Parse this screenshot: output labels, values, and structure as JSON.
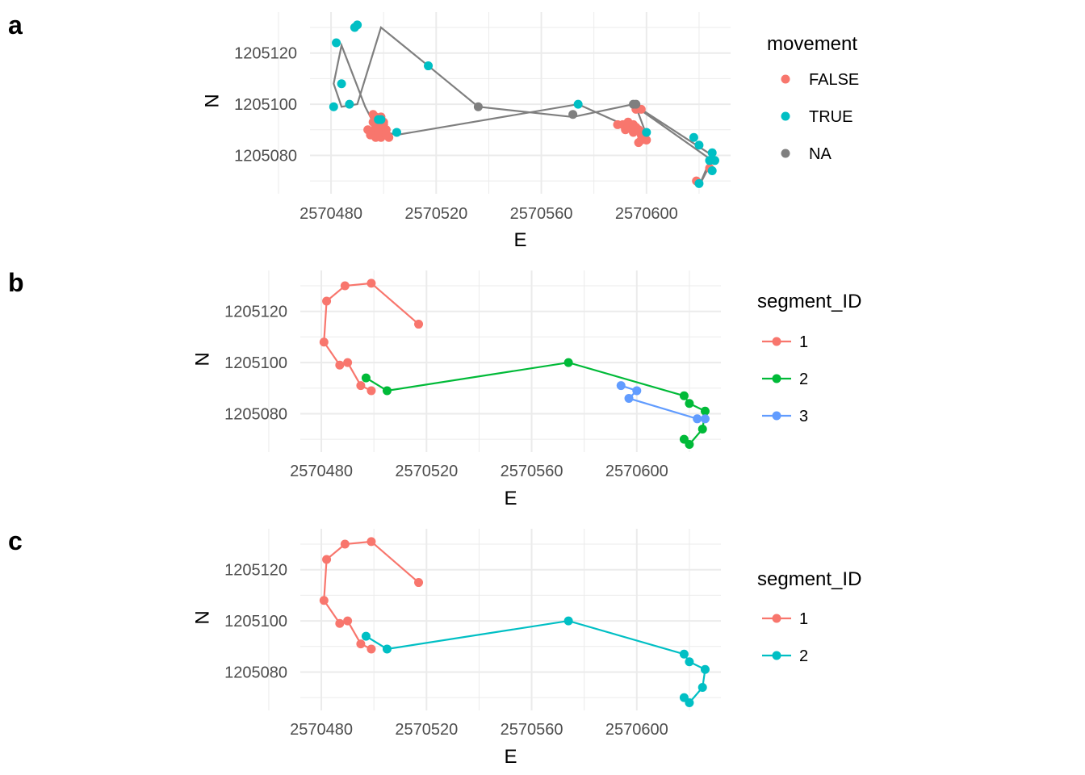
{
  "colors": {
    "salmon": "#F8766D",
    "teal": "#00BFC4",
    "gray": "#7F7F7F",
    "green": "#00BA38",
    "blue": "#619CFF"
  },
  "chart_data": [
    {
      "panel": "a",
      "type": "scatter",
      "xlabel": "E",
      "ylabel": "N",
      "xticks": [
        "2570480",
        "2570520",
        "2570560",
        "2570600"
      ],
      "yticks": [
        "1205120",
        "1205100",
        "1205080"
      ],
      "xlim": [
        2570472,
        2570632
      ],
      "ylim": [
        1205065,
        1205136
      ],
      "path": {
        "color": "#7F7F7F",
        "x": [
          2570496,
          2570493,
          2570484,
          2570481,
          2570484,
          2570490,
          2570499,
          2570517,
          2570536,
          2570572,
          2570595,
          2570625,
          2570620,
          2570625,
          2570596,
          2570600,
          2570574,
          2570505,
          2570497
        ],
        "y": [
          1205093,
          1205099,
          1205123,
          1205108,
          1205099,
          1205100,
          1205130,
          1205115,
          1205099,
          1205095,
          1205100,
          1205080,
          1205068,
          1205078,
          1205099,
          1205088,
          1205100,
          1205088,
          1205090
        ]
      },
      "legend": {
        "title": "movement",
        "entries": [
          {
            "label": "FALSE",
            "color": "#F8766D"
          },
          {
            "label": "TRUE",
            "color": "#00BFC4"
          },
          {
            "label": "NA",
            "color": "#7F7F7F"
          }
        ]
      },
      "series": [
        {
          "name": "FALSE",
          "color": "#F8766D",
          "x": [
            2570494,
            2570495,
            2570496,
            2570497,
            2570498,
            2570499,
            2570500,
            2570501,
            2570502,
            2570496,
            2570497,
            2570498,
            2570499,
            2570500,
            2570495,
            2570497,
            2570499,
            2570501,
            2570497,
            2570499,
            2570496,
            2570498,
            2570500,
            2570589,
            2570591,
            2570592,
            2570593,
            2570594,
            2570595,
            2570596,
            2570597,
            2570598,
            2570599,
            2570600,
            2570593,
            2570595,
            2570597,
            2570599,
            2570597,
            2570598,
            2570596,
            2570598,
            2570619,
            2570624
          ],
          "y": [
            1205090,
            1205088,
            1205089,
            1205091,
            1205090,
            1205089,
            1205088,
            1205090,
            1205087,
            1205093,
            1205094,
            1205092,
            1205091,
            1205093,
            1205088,
            1205087,
            1205087,
            1205088,
            1205095,
            1205095,
            1205096,
            1205089,
            1205092,
            1205092,
            1205092,
            1205090,
            1205093,
            1205091,
            1205089,
            1205091,
            1205090,
            1205088,
            1205087,
            1205086,
            1205091,
            1205092,
            1205090,
            1205089,
            1205085,
            1205086,
            1205098,
            1205098,
            1205070,
            1205075
          ]
        },
        {
          "name": "TRUE",
          "color": "#00BFC4",
          "x": [
            2570499,
            2570489,
            2570482,
            2570484,
            2570481,
            2570487,
            2570490,
            2570498,
            2570505,
            2570517,
            2570574,
            2570618,
            2570620,
            2570625,
            2570624,
            2570626,
            2570625,
            2570620,
            2570600
          ],
          "y": [
            1205094,
            1205130,
            1205124,
            1205108,
            1205099,
            1205100,
            1205131,
            1205094,
            1205089,
            1205115,
            1205100,
            1205087,
            1205084,
            1205081,
            1205078,
            1205078,
            1205074,
            1205069,
            1205089
          ]
        },
        {
          "name": "NA",
          "color": "#7F7F7F",
          "x": [
            2570536,
            2570572,
            2570595,
            2570596
          ],
          "y": [
            1205099,
            1205096,
            1205100,
            1205100
          ]
        }
      ]
    },
    {
      "panel": "b",
      "type": "line",
      "xlabel": "E",
      "ylabel": "N",
      "xticks": [
        "2570480",
        "2570520",
        "2570560",
        "2570600"
      ],
      "yticks": [
        "1205120",
        "1205100",
        "1205080"
      ],
      "xlim": [
        2570472,
        2570632
      ],
      "ylim": [
        1205065,
        1205136
      ],
      "legend": {
        "title": "segment_ID",
        "entries": [
          {
            "label": "1",
            "color": "#F8766D"
          },
          {
            "label": "2",
            "color": "#00BA38"
          },
          {
            "label": "3",
            "color": "#619CFF"
          }
        ]
      },
      "series": [
        {
          "name": "1",
          "color": "#F8766D",
          "x": [
            2570517,
            2570499,
            2570489,
            2570482,
            2570481,
            2570487,
            2570490,
            2570495,
            2570499
          ],
          "y": [
            1205115,
            1205131,
            1205130,
            1205124,
            1205108,
            1205099,
            1205100,
            1205091,
            1205089
          ]
        },
        {
          "name": "2",
          "color": "#00BA38",
          "x": [
            2570497,
            2570505,
            2570574,
            2570618,
            2570620,
            2570626,
            2570625,
            2570620,
            2570618
          ],
          "y": [
            1205094,
            1205089,
            1205100,
            1205087,
            1205084,
            1205081,
            1205074,
            1205068,
            1205070
          ]
        },
        {
          "name": "3",
          "color": "#619CFF",
          "x": [
            2570594,
            2570600,
            2570597,
            2570623,
            2570626
          ],
          "y": [
            1205091,
            1205089,
            1205086,
            1205078,
            1205078
          ]
        }
      ]
    },
    {
      "panel": "c",
      "type": "line",
      "xlabel": "E",
      "ylabel": "N",
      "xticks": [
        "2570480",
        "2570520",
        "2570560",
        "2570600"
      ],
      "yticks": [
        "1205120",
        "1205100",
        "1205080"
      ],
      "xlim": [
        2570472,
        2570632
      ],
      "ylim": [
        1205065,
        1205136
      ],
      "legend": {
        "title": "segment_ID",
        "entries": [
          {
            "label": "1",
            "color": "#F8766D"
          },
          {
            "label": "2",
            "color": "#00BFC4"
          }
        ]
      },
      "series": [
        {
          "name": "1",
          "color": "#F8766D",
          "x": [
            2570517,
            2570499,
            2570489,
            2570482,
            2570481,
            2570487,
            2570490,
            2570495,
            2570499
          ],
          "y": [
            1205115,
            1205131,
            1205130,
            1205124,
            1205108,
            1205099,
            1205100,
            1205091,
            1205089
          ]
        },
        {
          "name": "2",
          "color": "#00BFC4",
          "x": [
            2570497,
            2570505,
            2570574,
            2570618,
            2570620,
            2570626,
            2570625,
            2570620,
            2570618
          ],
          "y": [
            1205094,
            1205089,
            1205100,
            1205087,
            1205084,
            1205081,
            1205074,
            1205068,
            1205070
          ]
        }
      ]
    }
  ]
}
